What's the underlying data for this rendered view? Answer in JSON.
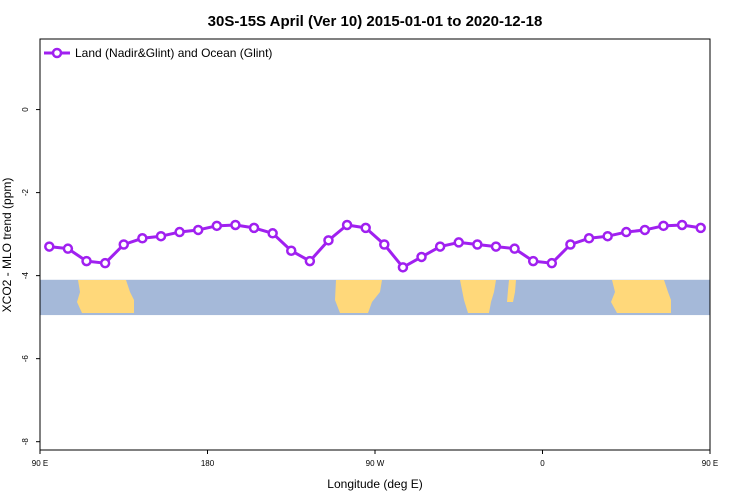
{
  "chart_data": {
    "type": "line",
    "title": "30S-15S April (Ver 10)   2015-01-01 to 2020-12-18",
    "xlabel": "Longitude (deg E)",
    "ylabel": "XCO2 - MLO trend (ppm)",
    "xlim": [
      90,
      450
    ],
    "ylim": [
      -8.2,
      1.7
    ],
    "x_ticks": [
      {
        "value": 90,
        "label": "90 E"
      },
      {
        "value": 180,
        "label": "180"
      },
      {
        "value": 270,
        "label": "90 W"
      },
      {
        "value": 360,
        "label": "0"
      },
      {
        "value": 450,
        "label": "90 E"
      },
      {
        "value": 540,
        "label": "180"
      }
    ],
    "y_ticks": [
      {
        "value": 0,
        "label": "0"
      },
      {
        "value": -2,
        "label": "-2"
      },
      {
        "value": -4,
        "label": "-4"
      },
      {
        "value": -6,
        "label": "-6"
      },
      {
        "value": -8,
        "label": "-8"
      }
    ],
    "grid": false,
    "legend_position": "top-left",
    "series": [
      {
        "name": "Land (Nadir&Glint) and Ocean (Glint)",
        "color": "#a020f0",
        "marker": "open-circle",
        "x": [
          95,
          105,
          115,
          125,
          135,
          145,
          155,
          165,
          175,
          185,
          195,
          205,
          215,
          225,
          235,
          245,
          255,
          265,
          275,
          285,
          295,
          305,
          315,
          325,
          335,
          345,
          355,
          365,
          375,
          385,
          395,
          405,
          415,
          425,
          435,
          445
        ],
        "y": [
          -3.3,
          -3.35,
          -3.65,
          -3.7,
          -3.25,
          -3.1,
          -3.05,
          -2.95,
          -2.9,
          -2.8,
          -2.78,
          -2.85,
          -2.98,
          -3.4,
          -3.65,
          -3.15,
          -2.78,
          -2.85,
          -3.25,
          -3.8,
          -3.55,
          -3.3,
          -3.2,
          -3.25,
          -3.3,
          -3.35,
          -3.65,
          -3.7,
          -3.25,
          -3.1,
          -3.05,
          -2.95,
          -2.9,
          -2.8,
          -2.78,
          -2.85
        ]
      }
    ],
    "map_strip": {
      "ocean_color": "#a5b9d9",
      "land_color": "#ffd87a",
      "y_range": [
        -4.95,
        -4.1
      ]
    }
  }
}
